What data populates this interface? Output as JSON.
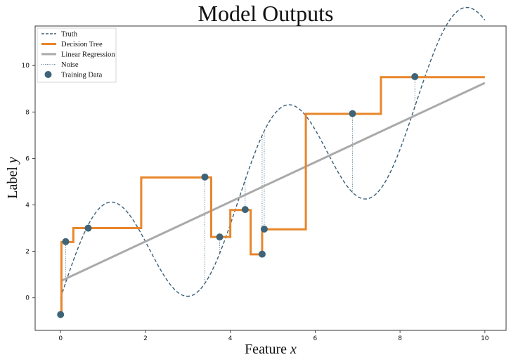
{
  "chart_data": {
    "type": "line",
    "title": "Model Outputs",
    "xlabel": "Feature ",
    "xlabel_var": "x",
    "ylabel": "Label ",
    "ylabel_var": "y",
    "xlim": [
      -0.6,
      10.5
    ],
    "ylim": [
      -1.4,
      11.7
    ],
    "xticks": [
      0,
      2,
      4,
      6,
      8,
      10
    ],
    "yticks": [
      0,
      2,
      4,
      6,
      8,
      10
    ],
    "grid": false,
    "legend_position": "top-left",
    "legend": [
      {
        "label": "Truth",
        "style": "dashed-line"
      },
      {
        "label": "Decision Tree",
        "style": "thick-line"
      },
      {
        "label": "Linear Regression",
        "style": "thick-line"
      },
      {
        "label": "Noise",
        "style": "dotted-line"
      },
      {
        "label": "Training Data",
        "style": "marker"
      }
    ],
    "colors": {
      "truth": "#3a5f78",
      "tree": "#e8862a",
      "linear": "#aaaaaa",
      "noise": "#3a5f78",
      "points": "#3d6478"
    },
    "series": [
      {
        "name": "Truth",
        "kind": "function",
        "expression": "x + 3*sin(1.5*x)",
        "x_range": [
          0,
          10
        ]
      },
      {
        "name": "Decision Tree",
        "kind": "step",
        "x": [
          0,
          0.02,
          0.3,
          1.9,
          3.55,
          4.0,
          4.48,
          4.75,
          5.78,
          7.55,
          10.0
        ],
        "y": [
          -0.75,
          2.4,
          3.0,
          5.18,
          2.62,
          3.78,
          1.87,
          2.95,
          7.92,
          9.5,
          9.5
        ]
      },
      {
        "name": "Linear Regression",
        "kind": "line",
        "x": [
          0,
          10
        ],
        "y": [
          0.72,
          9.25
        ]
      },
      {
        "name": "Training Data",
        "kind": "scatter",
        "points": [
          {
            "x": 0.0,
            "y": -0.72
          },
          {
            "x": 0.12,
            "y": 2.42
          },
          {
            "x": 0.65,
            "y": 3.0
          },
          {
            "x": 3.4,
            "y": 5.2
          },
          {
            "x": 3.75,
            "y": 2.62
          },
          {
            "x": 4.35,
            "y": 3.8
          },
          {
            "x": 4.75,
            "y": 1.88
          },
          {
            "x": 4.8,
            "y": 2.96
          },
          {
            "x": 6.88,
            "y": 7.93
          },
          {
            "x": 8.35,
            "y": 9.52
          }
        ]
      }
    ]
  }
}
